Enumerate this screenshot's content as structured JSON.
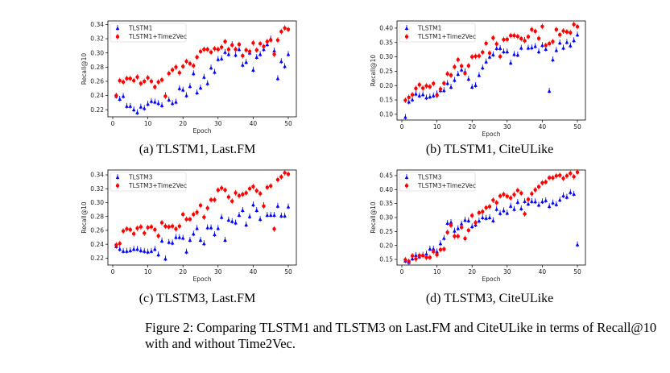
{
  "figure_caption_line1": "Figure 2:  Comparing TLSTM1 and TLSTM3 on Last.FM and CiteULike in terms of Recall@10",
  "figure_caption_line2": "with and without Time2Vec.",
  "colors": {
    "baseline": "#0000ff",
    "time2vec": "#ff0000"
  },
  "chart_data": [
    {
      "type": "scatter",
      "subcaption": "(a) TLSTM1, Last.FM",
      "xlabel": "Epoch",
      "ylabel": "Recall@10",
      "xlim": [
        0,
        50
      ],
      "ylim": [
        0.21,
        0.345
      ],
      "xticks": [
        "0",
        "10",
        "20",
        "30",
        "40",
        "50"
      ],
      "yticks": [
        "0.22",
        "0.24",
        "0.26",
        "0.28",
        "0.30",
        "0.32",
        "0.34"
      ],
      "legend": "top-left",
      "grid": false,
      "x": [
        1,
        2,
        3,
        4,
        5,
        6,
        7,
        8,
        9,
        10,
        11,
        12,
        13,
        14,
        15,
        16,
        17,
        18,
        19,
        20,
        21,
        22,
        23,
        24,
        25,
        26,
        27,
        28,
        29,
        30,
        31,
        32,
        33,
        34,
        35,
        36,
        37,
        38,
        39,
        40,
        41,
        42,
        43,
        44,
        45,
        46,
        47,
        48,
        49,
        50
      ],
      "series": [
        {
          "name": "TLSTM1",
          "marker": "triangle",
          "values": [
            0.239,
            0.235,
            0.239,
            0.225,
            0.225,
            0.22,
            0.216,
            0.224,
            0.222,
            0.228,
            0.232,
            0.231,
            0.229,
            0.226,
            0.24,
            0.234,
            0.229,
            0.231,
            0.25,
            0.248,
            0.24,
            0.253,
            0.271,
            0.244,
            0.251,
            0.266,
            0.257,
            0.279,
            0.273,
            0.291,
            0.292,
            0.301,
            0.298,
            0.312,
            0.297,
            0.305,
            0.283,
            0.287,
            0.3,
            0.276,
            0.294,
            0.298,
            0.305,
            0.312,
            0.32,
            0.303,
            0.264,
            0.288,
            0.281,
            0.298
          ]
        },
        {
          "name": "TLSTM1+Time2Vec",
          "marker": "circle",
          "values": [
            0.24,
            0.261,
            0.259,
            0.264,
            0.264,
            0.261,
            0.266,
            0.257,
            0.26,
            0.265,
            0.26,
            0.252,
            0.259,
            0.262,
            0.239,
            0.271,
            0.276,
            0.28,
            0.272,
            0.281,
            0.288,
            0.285,
            0.282,
            0.294,
            0.302,
            0.305,
            0.305,
            0.301,
            0.306,
            0.305,
            0.308,
            0.316,
            0.305,
            0.311,
            0.305,
            0.312,
            0.296,
            0.304,
            0.302,
            0.314,
            0.304,
            0.313,
            0.309,
            0.316,
            0.318,
            0.298,
            0.318,
            0.33,
            0.335,
            0.333
          ]
        }
      ]
    },
    {
      "type": "scatter",
      "subcaption": "(b) TLSTM1, CiteULike",
      "xlabel": "Epoch",
      "ylabel": "Recall@10",
      "xlim": [
        0,
        50
      ],
      "ylim": [
        0.08,
        0.425
      ],
      "xticks": [
        "0",
        "10",
        "20",
        "30",
        "40",
        "50"
      ],
      "yticks": [
        "0.10",
        "0.15",
        "0.20",
        "0.25",
        "0.30",
        "0.35",
        "0.40"
      ],
      "legend": "top-left",
      "grid": false,
      "x": [
        1,
        2,
        3,
        4,
        5,
        6,
        7,
        8,
        9,
        10,
        11,
        12,
        13,
        14,
        15,
        16,
        17,
        18,
        19,
        20,
        21,
        22,
        23,
        24,
        25,
        26,
        27,
        28,
        29,
        30,
        31,
        32,
        33,
        34,
        35,
        36,
        37,
        38,
        39,
        40,
        41,
        42,
        43,
        44,
        45,
        46,
        47,
        48,
        49,
        50
      ],
      "series": [
        {
          "name": "TLSTM1",
          "marker": "triangle",
          "values": [
            0.09,
            0.143,
            0.151,
            0.171,
            0.165,
            0.169,
            0.158,
            0.161,
            0.165,
            0.172,
            0.183,
            0.183,
            0.208,
            0.195,
            0.219,
            0.24,
            0.255,
            0.249,
            0.223,
            0.195,
            0.201,
            0.236,
            0.262,
            0.283,
            0.3,
            0.308,
            0.33,
            0.33,
            0.318,
            0.318,
            0.279,
            0.309,
            0.307,
            0.331,
            0.358,
            0.331,
            0.332,
            0.337,
            0.318,
            0.34,
            0.327,
            0.181,
            0.29,
            0.323,
            0.349,
            0.331,
            0.351,
            0.339,
            0.357,
            0.377
          ]
        },
        {
          "name": "TLSTM1+Time2Vec",
          "marker": "circle",
          "values": [
            0.149,
            0.159,
            0.168,
            0.19,
            0.203,
            0.191,
            0.199,
            0.196,
            0.207,
            0.166,
            0.188,
            0.208,
            0.241,
            0.236,
            0.265,
            0.29,
            0.268,
            0.243,
            0.269,
            0.3,
            0.302,
            0.303,
            0.316,
            0.347,
            0.313,
            0.366,
            0.345,
            0.301,
            0.36,
            0.361,
            0.374,
            0.374,
            0.371,
            0.363,
            0.356,
            0.37,
            0.395,
            0.389,
            0.364,
            0.406,
            0.34,
            0.346,
            0.353,
            0.395,
            0.377,
            0.39,
            0.387,
            0.384,
            0.413,
            0.405
          ]
        }
      ]
    },
    {
      "type": "scatter",
      "subcaption": "(c) TLSTM3, Last.FM",
      "xlabel": "Epoch",
      "ylabel": "Recall@10",
      "xlim": [
        0,
        50
      ],
      "ylim": [
        0.21,
        0.347
      ],
      "xticks": [
        "0",
        "10",
        "20",
        "30",
        "40",
        "50"
      ],
      "yticks": [
        "0.22",
        "0.24",
        "0.26",
        "0.28",
        "0.30",
        "0.32",
        "0.34"
      ],
      "legend": "top-left",
      "grid": false,
      "x": [
        1,
        2,
        3,
        4,
        5,
        6,
        7,
        8,
        9,
        10,
        11,
        12,
        13,
        14,
        15,
        16,
        17,
        18,
        19,
        20,
        21,
        22,
        23,
        24,
        25,
        26,
        27,
        28,
        29,
        30,
        31,
        32,
        33,
        34,
        35,
        36,
        37,
        38,
        39,
        40,
        41,
        42,
        43,
        44,
        45,
        46,
        47,
        48,
        49,
        50
      ],
      "series": [
        {
          "name": "TLSTM3",
          "marker": "triangle",
          "values": [
            0.237,
            0.233,
            0.23,
            0.23,
            0.231,
            0.233,
            0.233,
            0.231,
            0.23,
            0.229,
            0.23,
            0.233,
            0.225,
            0.245,
            0.219,
            0.243,
            0.242,
            0.25,
            0.25,
            0.249,
            0.229,
            0.246,
            0.255,
            0.263,
            0.246,
            0.241,
            0.264,
            0.264,
            0.254,
            0.263,
            0.279,
            0.246,
            0.275,
            0.273,
            0.271,
            0.282,
            0.289,
            0.268,
            0.28,
            0.297,
            0.289,
            0.276,
            0.296,
            0.282,
            0.282,
            0.282,
            0.295,
            0.281,
            0.281,
            0.294
          ]
        },
        {
          "name": "TLSTM3+Time2Vec",
          "marker": "circle",
          "values": [
            0.239,
            0.241,
            0.259,
            0.262,
            0.261,
            0.255,
            0.263,
            0.265,
            0.256,
            0.264,
            0.265,
            0.261,
            0.252,
            0.271,
            0.266,
            0.265,
            0.266,
            0.262,
            0.266,
            0.283,
            0.276,
            0.276,
            0.283,
            0.286,
            0.296,
            0.279,
            0.292,
            0.304,
            0.304,
            0.318,
            0.321,
            0.318,
            0.308,
            0.302,
            0.314,
            0.31,
            0.312,
            0.314,
            0.32,
            0.323,
            0.317,
            0.313,
            0.295,
            0.322,
            0.324,
            0.262,
            0.333,
            0.337,
            0.343,
            0.341
          ]
        }
      ]
    },
    {
      "type": "scatter",
      "subcaption": "(d) TLSTM3, CiteULike",
      "xlabel": "Epoch",
      "ylabel": "Recall@10",
      "xlim": [
        0,
        50
      ],
      "ylim": [
        0.13,
        0.47
      ],
      "xticks": [
        "0",
        "10",
        "20",
        "30",
        "40",
        "50"
      ],
      "yticks": [
        "0.15",
        "0.20",
        "0.25",
        "0.30",
        "0.35",
        "0.40",
        "0.45"
      ],
      "legend": "top-left",
      "grid": false,
      "x": [
        1,
        2,
        3,
        4,
        5,
        6,
        7,
        8,
        9,
        10,
        11,
        12,
        13,
        14,
        15,
        16,
        17,
        18,
        19,
        20,
        21,
        22,
        23,
        24,
        25,
        26,
        27,
        28,
        29,
        30,
        31,
        32,
        33,
        34,
        35,
        36,
        37,
        38,
        39,
        40,
        41,
        42,
        43,
        44,
        45,
        46,
        47,
        48,
        49,
        50
      ],
      "series": [
        {
          "name": "TLSTM3",
          "marker": "triangle",
          "values": [
            0.145,
            0.14,
            0.153,
            0.165,
            0.16,
            0.166,
            0.17,
            0.188,
            0.188,
            0.178,
            0.207,
            0.226,
            0.28,
            0.283,
            0.252,
            0.261,
            0.278,
            0.291,
            0.289,
            0.268,
            0.274,
            0.288,
            0.3,
            0.298,
            0.3,
            0.289,
            0.33,
            0.315,
            0.325,
            0.316,
            0.341,
            0.33,
            0.355,
            0.332,
            0.358,
            0.349,
            0.358,
            0.357,
            0.345,
            0.357,
            0.361,
            0.34,
            0.353,
            0.347,
            0.363,
            0.378,
            0.373,
            0.39,
            0.384,
            0.203
          ]
        },
        {
          "name": "TLSTM3+Time2Vec",
          "marker": "circle",
          "values": [
            0.149,
            0.143,
            0.163,
            0.152,
            0.164,
            0.164,
            0.157,
            0.157,
            0.178,
            0.167,
            0.185,
            0.187,
            0.247,
            0.272,
            0.233,
            0.233,
            0.265,
            0.225,
            0.254,
            0.307,
            0.282,
            0.317,
            0.321,
            0.335,
            0.339,
            0.362,
            0.353,
            0.377,
            0.383,
            0.376,
            0.37,
            0.382,
            0.397,
            0.387,
            0.313,
            0.365,
            0.385,
            0.399,
            0.41,
            0.424,
            0.427,
            0.442,
            0.442,
            0.449,
            0.451,
            0.44,
            0.449,
            0.458,
            0.446,
            0.462
          ]
        }
      ]
    }
  ]
}
